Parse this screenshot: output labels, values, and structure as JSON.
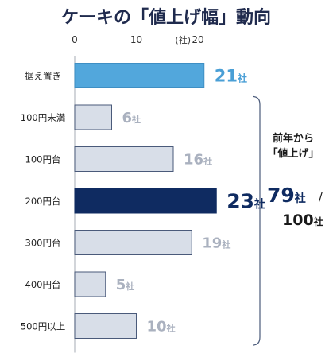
{
  "chart_data": {
    "type": "bar",
    "orientation": "horizontal",
    "title": "ケーキの「値上げ幅」動向",
    "unit_label": "(社)",
    "x_ticks": [
      0,
      10,
      20
    ],
    "xlim": [
      0,
      23
    ],
    "grid": false,
    "categories": [
      "据え置き",
      "100円未満",
      "100円台",
      "200円台",
      "300円台",
      "400円台",
      "500円以上"
    ],
    "values": [
      21,
      6,
      16,
      23,
      19,
      5,
      10
    ],
    "value_suffix": "社",
    "styles": [
      "highlight",
      "normal",
      "normal",
      "emphasis",
      "normal",
      "normal",
      "normal"
    ],
    "annotation": {
      "label_lines": [
        "前年から",
        "「値上げ」"
      ],
      "value": "79",
      "value_suffix": "社",
      "separator": "/",
      "total": "100",
      "total_suffix": "社"
    },
    "colors": {
      "title": "#1f2a4d",
      "highlight_fill": "#52a7dc",
      "highlight_stroke": "#3e8fc4",
      "highlight_text": "#4a9fd6",
      "emphasis_fill": "#0f2b61",
      "emphasis_text": "#0f2b61",
      "normal_fill": "#d8dee8",
      "normal_stroke": "#4a5a7a",
      "normal_text": "#aab1bf",
      "axis": "#b5b9c0",
      "category_text": "#222222",
      "annotation_text": "#1a1a1a",
      "annotation_value": "#0f2b61",
      "bracket": "#4a5a7a"
    }
  }
}
